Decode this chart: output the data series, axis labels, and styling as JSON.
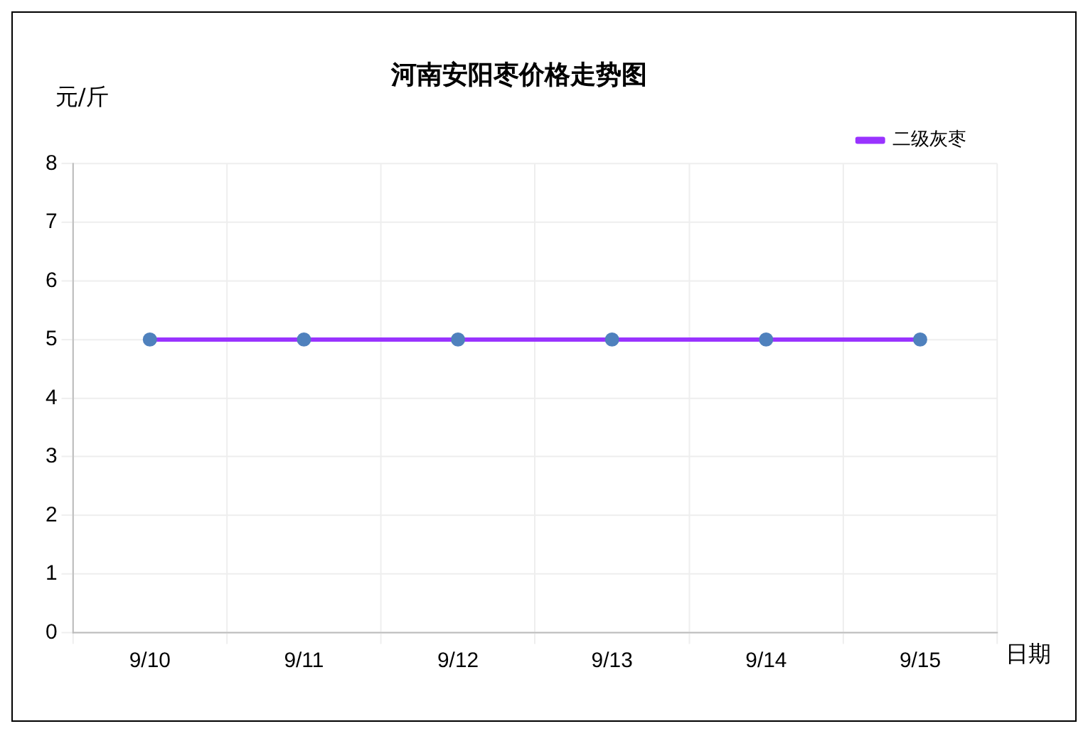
{
  "chart_data": {
    "type": "line",
    "title": "河南安阳枣价格走势图",
    "ylabel": "元/斤",
    "xlabel": "日期",
    "categories": [
      "9/10",
      "9/11",
      "9/12",
      "9/13",
      "9/14",
      "9/15"
    ],
    "series": [
      {
        "name": "二级灰枣",
        "color": "#9933ff",
        "values": [
          5,
          5,
          5,
          5,
          5,
          5
        ]
      }
    ],
    "ylim": [
      0,
      8
    ],
    "yticks": [
      0,
      1,
      2,
      3,
      4,
      5,
      6,
      7,
      8
    ],
    "grid": true,
    "legend": "top right",
    "marker": "circle",
    "line_style": "solid"
  }
}
